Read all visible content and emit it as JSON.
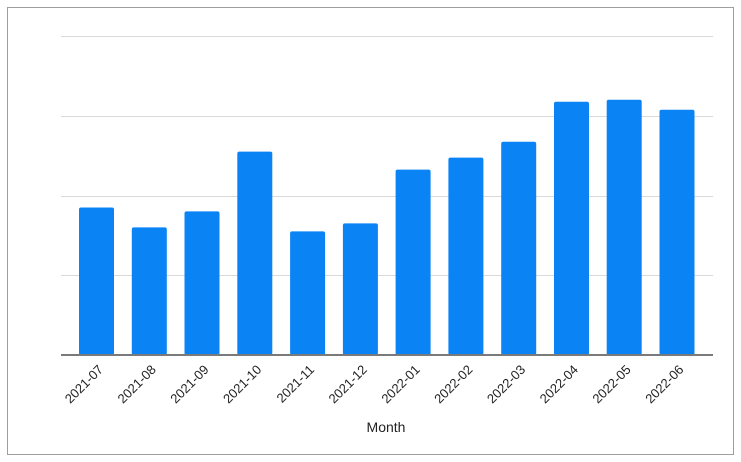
{
  "chart_data": {
    "type": "bar",
    "title": "",
    "xlabel": "Month",
    "ylabel": "",
    "categories": [
      "2021-07",
      "2021-08",
      "2021-09",
      "2021-10",
      "2021-11",
      "2021-12",
      "2022-01",
      "2022-02",
      "2022-03",
      "2022-04",
      "2022-05",
      "2022-06"
    ],
    "values": [
      37,
      32,
      36,
      51,
      31,
      33,
      46.5,
      49.5,
      53.5,
      63.5,
      64,
      61.5
    ],
    "ylim": [
      0,
      80
    ],
    "grid": true,
    "legend": "none",
    "colors": {
      "bar": "#0a84f4",
      "grid": "#d9d9d9",
      "axis": "#7a7a7a"
    }
  }
}
